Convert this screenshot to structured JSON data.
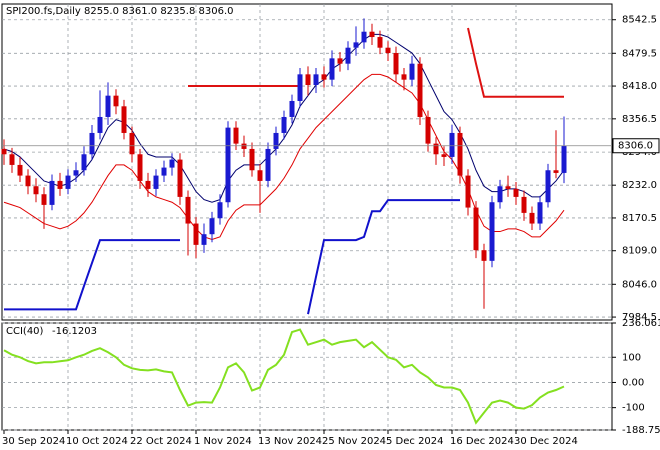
{
  "chart_data": [
    {
      "type": "candlestick",
      "title": "SPI200.fs,Daily  8255.0 8361.0 8235.8 8306.0",
      "categories": [
        "30 Sep 2024",
        null,
        null,
        null,
        null,
        null,
        null,
        null,
        "10 Oct 2024",
        null,
        null,
        null,
        null,
        null,
        null,
        null,
        "22 Oct 2024",
        null,
        null,
        null,
        null,
        null,
        null,
        null,
        "1 Nov 2024",
        null,
        null,
        null,
        null,
        null,
        null,
        null,
        "13 Nov 2024",
        null,
        null,
        null,
        null,
        null,
        null,
        null,
        "25 Nov 2024",
        null,
        null,
        null,
        null,
        null,
        null,
        null,
        "5 Dec 2024",
        null,
        null,
        null,
        null,
        null,
        null,
        null,
        "16 Dec 2024",
        null,
        null,
        null,
        null,
        null,
        null,
        null,
        "30 Dec 2024",
        null,
        null,
        null,
        null,
        null,
        null
      ],
      "open": [
        8300,
        8290,
        8270,
        8250,
        8230,
        8215,
        8195,
        8240,
        8225,
        8250,
        8260,
        8290,
        8330,
        8360,
        8400,
        8380,
        8330,
        8290,
        8240,
        8225,
        8250,
        8265,
        8280,
        8210,
        8160,
        8120,
        8140,
        8170,
        8200,
        8340,
        8310,
        8300,
        8260,
        8240,
        8300,
        8330,
        8360,
        8390,
        8440,
        8420,
        8440,
        8430,
        8470,
        8460,
        8490,
        8500,
        8520,
        8510,
        8490,
        8480,
        8440,
        8430,
        8460,
        8360,
        8310,
        8290,
        8285,
        8330,
        8250,
        8190,
        8110,
        8090,
        8200,
        8230,
        8225,
        8210,
        8180,
        8160,
        8200,
        8260,
        8255
      ],
      "high": [
        8318,
        8302,
        8285,
        8262,
        8245,
        8228,
        8252,
        8255,
        8262,
        8275,
        8305,
        8345,
        8410,
        8425,
        8412,
        8392,
        8342,
        8300,
        8255,
        8262,
        8278,
        8292,
        8292,
        8222,
        8172,
        8160,
        8182,
        8215,
        8352,
        8352,
        8325,
        8312,
        8272,
        8312,
        8342,
        8372,
        8402,
        8452,
        8455,
        8452,
        8455,
        8485,
        8482,
        8502,
        8530,
        8545,
        8535,
        8522,
        8502,
        8492,
        8452,
        8475,
        8472,
        8372,
        8322,
        8305,
        8345,
        8342,
        8262,
        8202,
        8122,
        8212,
        8242,
        8250,
        8238,
        8222,
        8192,
        8212,
        8272,
        8335,
        8361
      ],
      "low": [
        8270,
        8255,
        8238,
        8215,
        8200,
        8150,
        8185,
        8212,
        8215,
        8238,
        8250,
        8280,
        8318,
        8345,
        8365,
        8318,
        8275,
        8225,
        8210,
        8212,
        8238,
        8250,
        8195,
        8100,
        8095,
        8105,
        8125,
        8158,
        8190,
        8298,
        8285,
        8248,
        8180,
        8228,
        8288,
        8318,
        8348,
        8378,
        8400,
        8405,
        8415,
        8418,
        8445,
        8448,
        8475,
        8488,
        8495,
        8478,
        8465,
        8425,
        8410,
        8418,
        8345,
        8295,
        8270,
        8268,
        8272,
        8235,
        8175,
        8095,
        8000,
        8078,
        8188,
        8210,
        8195,
        8165,
        8148,
        8148,
        8190,
        8245,
        8235.8
      ],
      "close": [
        8290,
        8270,
        8250,
        8230,
        8215,
        8195,
        8240,
        8225,
        8250,
        8260,
        8290,
        8330,
        8360,
        8400,
        8380,
        8330,
        8290,
        8240,
        8225,
        8250,
        8265,
        8280,
        8210,
        8160,
        8120,
        8140,
        8170,
        8200,
        8340,
        8310,
        8300,
        8260,
        8240,
        8300,
        8330,
        8360,
        8390,
        8440,
        8420,
        8440,
        8430,
        8470,
        8460,
        8490,
        8500,
        8520,
        8510,
        8490,
        8480,
        8440,
        8430,
        8460,
        8360,
        8310,
        8290,
        8285,
        8330,
        8250,
        8190,
        8110,
        8090,
        8200,
        8230,
        8225,
        8210,
        8180,
        8160,
        8200,
        8260,
        8255,
        8306
      ],
      "up_color": "#1a1ad0",
      "down_color": "#d40000",
      "lines": [
        {
          "color": "#00006e",
          "width": 1,
          "values": [
            8300,
            8295,
            8285,
            8270,
            8255,
            8240,
            8235,
            8230,
            8235,
            8245,
            8260,
            8280,
            8310,
            8340,
            8355,
            8350,
            8335,
            8310,
            8290,
            8285,
            8285,
            8285,
            8270,
            8245,
            8220,
            8205,
            8200,
            8205,
            8240,
            8260,
            8270,
            8270,
            8270,
            8285,
            8300,
            8320,
            8345,
            8380,
            8400,
            8420,
            8430,
            8450,
            8460,
            8475,
            8490,
            8505,
            8515,
            8515,
            8510,
            8500,
            8490,
            8480,
            8460,
            8430,
            8400,
            8370,
            8355,
            8330,
            8300,
            8260,
            8230,
            8220,
            8220,
            8225,
            8225,
            8220,
            8210,
            8210,
            8225,
            8240,
            8260
          ]
        },
        {
          "color": "#e00000",
          "width": 1,
          "values": [
            8200,
            8195,
            8190,
            8180,
            8170,
            8160,
            8155,
            8150,
            8155,
            8165,
            8180,
            8200,
            8225,
            8250,
            8270,
            8270,
            8260,
            8240,
            8220,
            8210,
            8205,
            8200,
            8190,
            8170,
            8150,
            8135,
            8130,
            8135,
            8165,
            8185,
            8195,
            8195,
            8195,
            8210,
            8225,
            8245,
            8270,
            8300,
            8320,
            8340,
            8355,
            8370,
            8385,
            8400,
            8415,
            8430,
            8440,
            8440,
            8435,
            8425,
            8415,
            8405,
            8385,
            8355,
            8325,
            8295,
            8280,
            8255,
            8225,
            8185,
            8155,
            8145,
            8145,
            8150,
            8150,
            8145,
            8135,
            8135,
            8150,
            8165,
            8185
          ]
        },
        {
          "color": "#dd1111",
          "width": 2,
          "values": [
            null,
            null,
            null,
            null,
            null,
            null,
            null,
            null,
            null,
            null,
            null,
            null,
            null,
            null,
            null,
            null,
            null,
            null,
            null,
            null,
            null,
            null,
            null,
            8418,
            8418,
            8418,
            8418,
            8418,
            8418,
            8418,
            8418,
            8418,
            8418,
            8418,
            8418,
            8418,
            8418,
            8418,
            null,
            null,
            null,
            null,
            null,
            null,
            null,
            null,
            null,
            null,
            null,
            null,
            null,
            null,
            null,
            null,
            null,
            null,
            null,
            null,
            8527,
            8460,
            8398,
            8398,
            8398,
            8398,
            8398,
            8398,
            8398,
            8398,
            8398,
            8398,
            8398
          ]
        },
        {
          "color": "#1111cc",
          "width": 2,
          "values": [
            7999,
            7999,
            7999,
            7999,
            7999,
            7999,
            7999,
            7999,
            7999,
            7999,
            8043,
            8086,
            8129,
            8129,
            8129,
            8129,
            8129,
            8129,
            8129,
            8129,
            8129,
            8129,
            8129,
            null,
            null,
            null,
            null,
            null,
            null,
            null,
            null,
            null,
            null,
            null,
            null,
            null,
            null,
            null,
            7990,
            8060,
            8129,
            8129,
            8129,
            8129,
            8129,
            8135,
            8183,
            8183,
            8204,
            8204,
            8204,
            8204,
            8204,
            8204,
            8204,
            8204,
            8204,
            8204,
            null,
            null,
            null,
            null,
            null,
            null,
            null,
            null,
            null,
            null,
            null,
            null,
            null
          ]
        }
      ],
      "last_price": {
        "value": 8306,
        "label": "8306.0"
      },
      "ylim": [
        7979,
        8572
      ],
      "yticks": [
        8542.5,
        8479.5,
        {
          "value": 8418,
          "label": "8418.0"
        },
        8356.5,
        {
          "value": 8294,
          "label": "8294.0"
        },
        {
          "value": 8232,
          "label": "8232.0"
        },
        8170.5,
        {
          "value": 8109,
          "label": "8109.0"
        },
        {
          "value": 8046,
          "label": "8046.0"
        },
        7984.5
      ],
      "grid": true
    },
    {
      "type": "line",
      "title": "CCI(40)",
      "color": "#84e020",
      "values": [
        128,
        110,
        100,
        85,
        76,
        80,
        80,
        84,
        88,
        100,
        110,
        125,
        136,
        120,
        100,
        70,
        56,
        50,
        48,
        52,
        44,
        40,
        -30,
        -92,
        -80,
        -78,
        -80,
        -20,
        60,
        76,
        40,
        -32,
        -20,
        50,
        70,
        110,
        200,
        210,
        150,
        160,
        170,
        150,
        160,
        165,
        170,
        140,
        160,
        130,
        100,
        90,
        60,
        70,
        40,
        20,
        -10,
        -20,
        -20,
        -30,
        -80,
        -160,
        -120,
        -80,
        -72,
        -80,
        -100,
        -104,
        -90,
        -60,
        -40,
        -30,
        -16.1203
      ],
      "ylim": [
        -188.7557,
        236.0615
      ],
      "yticks": [
        236.0615,
        100,
        {
          "value": 0,
          "label": "0.00"
        },
        -100,
        -188.7557
      ],
      "grid": true
    }
  ]
}
